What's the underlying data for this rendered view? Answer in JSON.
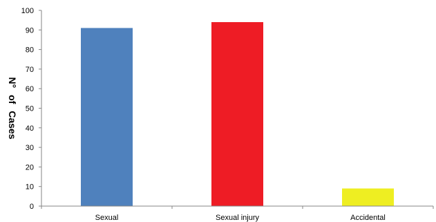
{
  "chart_data": {
    "type": "bar",
    "categories": [
      "Sexual",
      "Sexual injury",
      "Accidental"
    ],
    "values": [
      91,
      94,
      9
    ],
    "colors": [
      "#4f81bd",
      "#ee1c25",
      "#eeee22"
    ],
    "ylabel": "N° of Cases",
    "xlabel": "",
    "ylim": [
      0,
      100
    ],
    "yticks": [
      0,
      10,
      20,
      30,
      40,
      50,
      60,
      70,
      80,
      90,
      100
    ],
    "grid": false,
    "legend": "none"
  }
}
